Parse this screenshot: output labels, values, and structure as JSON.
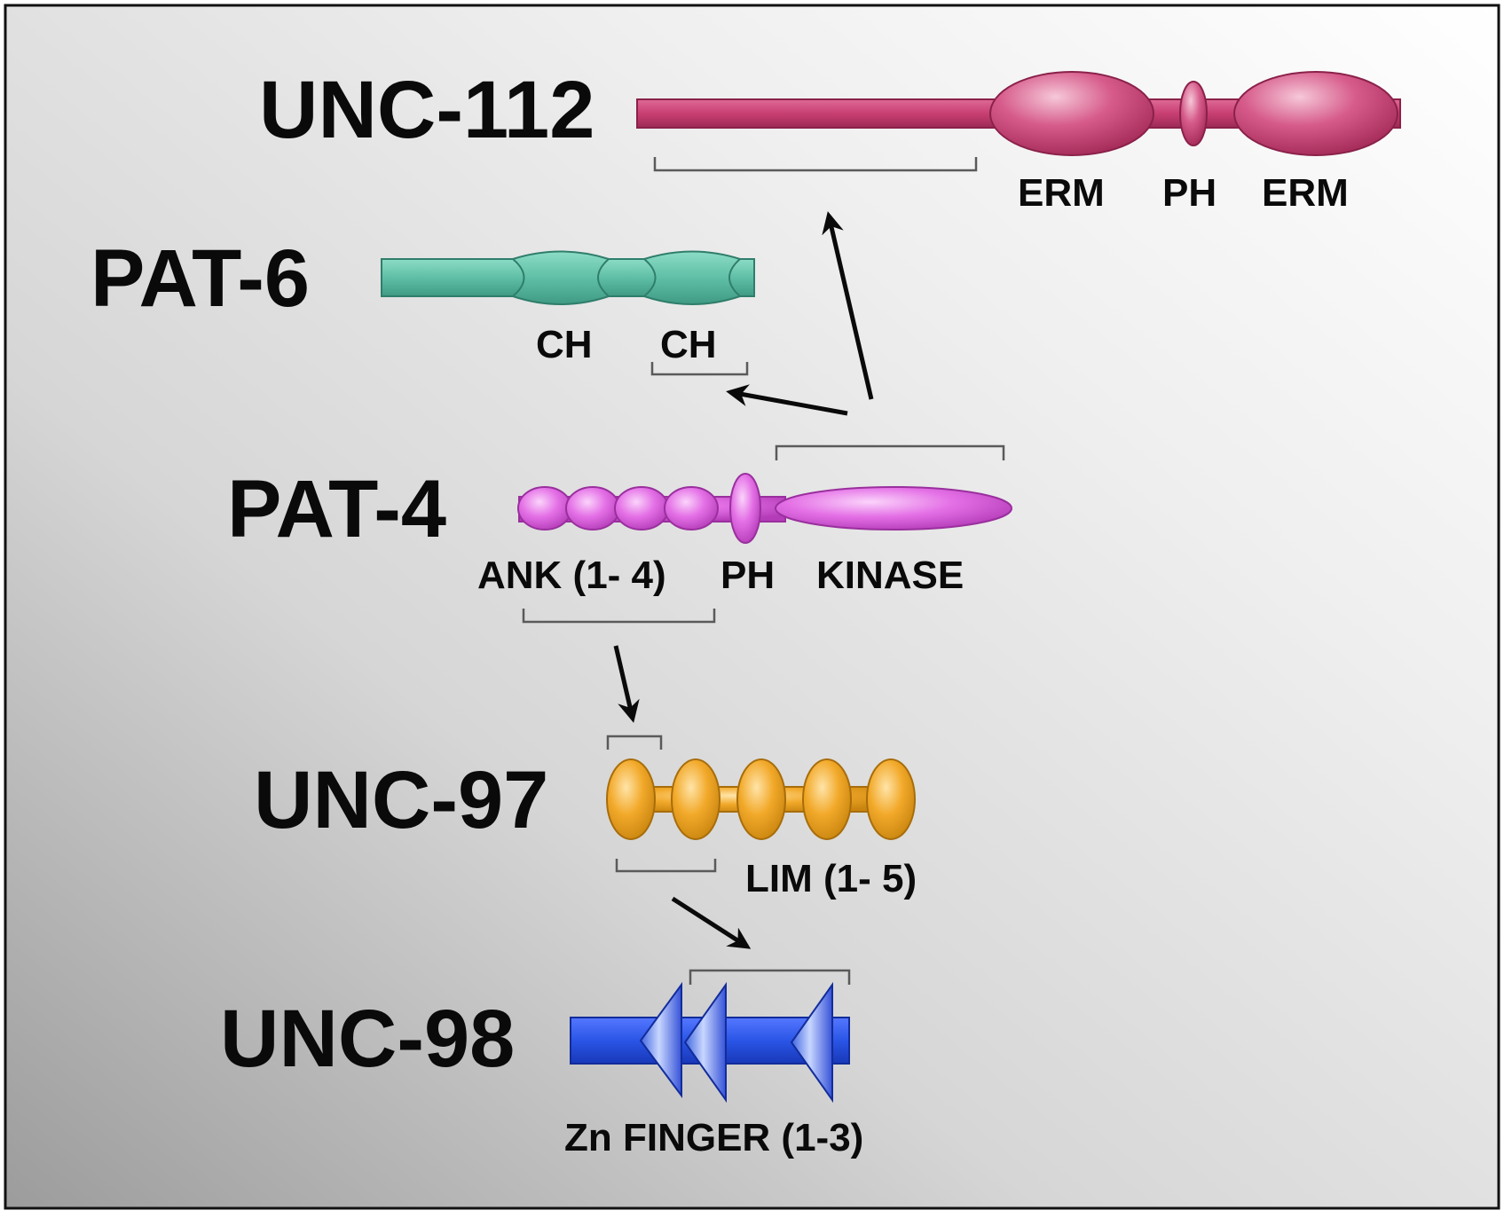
{
  "proteins": {
    "unc112": {
      "name": "UNC-112",
      "color": "#c83f72",
      "domains": [
        "ERM",
        "PH",
        "ERM"
      ]
    },
    "pat6": {
      "name": "PAT-6",
      "color": "#5fbfa6",
      "domains": [
        "CH",
        "CH"
      ]
    },
    "pat4": {
      "name": "PAT-4",
      "color": "#dd55de",
      "domains": [
        "ANK (1- 4)",
        "PH",
        "KINASE"
      ]
    },
    "unc97": {
      "name": "UNC-97",
      "color": "#f2a92a",
      "domains": [
        "LIM (1- 5)"
      ]
    },
    "unc98": {
      "name": "UNC-98",
      "color": "#2a55e6",
      "domains": [
        "Zn FINGER (1-3)"
      ]
    }
  },
  "interactions": [
    {
      "from": "PAT-4 KINASE",
      "to": "UNC-112"
    },
    {
      "from": "PAT-4 KINASE",
      "to": "PAT-6 CH"
    },
    {
      "from": "PAT-4 ANK (1- 4)",
      "to": "UNC-97 LIM"
    },
    {
      "from": "UNC-97 LIM",
      "to": "UNC-98 Zn FINGER"
    }
  ]
}
